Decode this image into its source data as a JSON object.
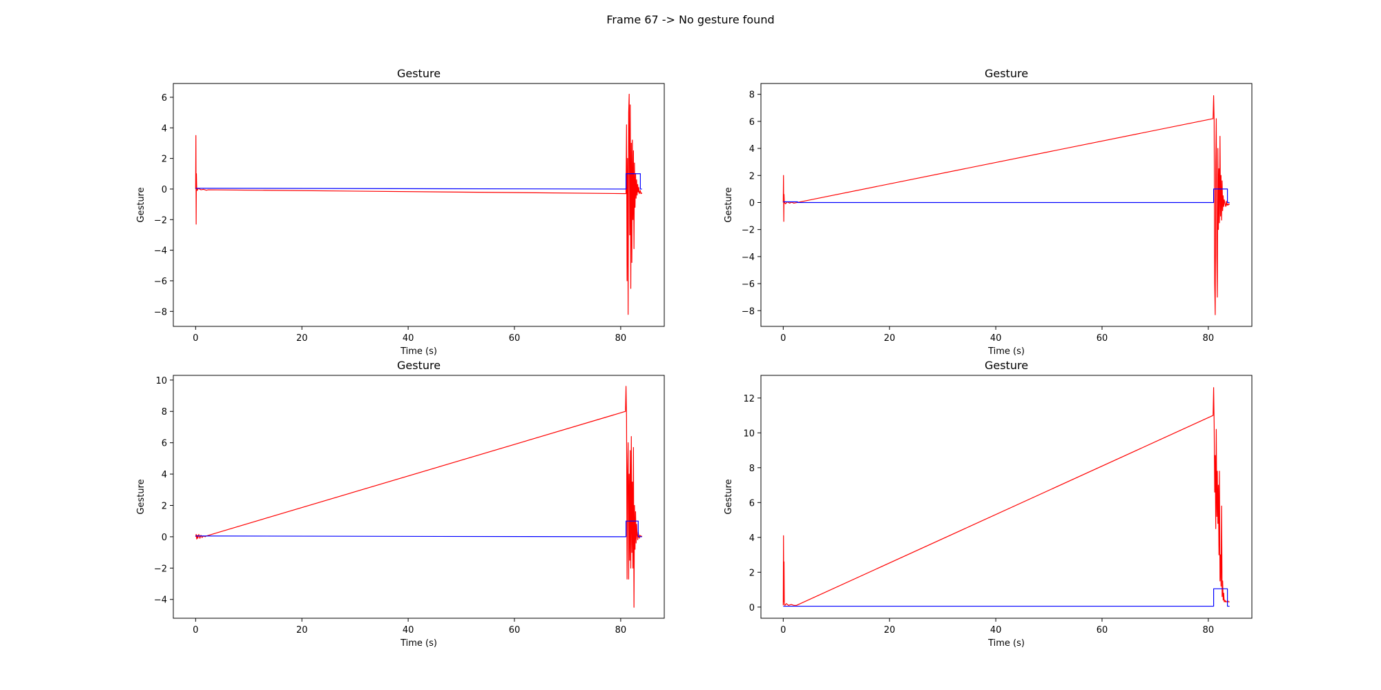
{
  "figure": {
    "suptitle": "Frame 67 -> No gesture found"
  },
  "colors": {
    "signal": "#ff0000",
    "gesture": "#0000ff",
    "axes": "#000000"
  },
  "chart_data": [
    {
      "type": "line",
      "title": "Gesture",
      "xlabel": "Time (s)",
      "ylabel": "Gesture",
      "xlim": [
        -4.2,
        88.2
      ],
      "ylim": [
        -8.98,
        6.9
      ],
      "xticks": [
        0,
        20,
        40,
        60,
        80
      ],
      "yticks": [
        -8,
        -6,
        -4,
        -2,
        0,
        2,
        4,
        6
      ],
      "grid": false,
      "series": [
        {
          "color": "#ff0000",
          "x": [
            0,
            0.05,
            0.1,
            0.15,
            0.2,
            0.3,
            0.5,
            1.0,
            1.5,
            2.0,
            2.4,
            81.0,
            81.1,
            81.2,
            81.3,
            81.4,
            81.5,
            81.6,
            81.7,
            81.8,
            81.9,
            82.0,
            82.1,
            82.2,
            82.3,
            82.4,
            82.5,
            82.6,
            82.7,
            82.8,
            82.9,
            83.0,
            83.1,
            83.2,
            83.3,
            83.4,
            83.5,
            83.6,
            83.7,
            83.8,
            83.9,
            84.0
          ],
          "y": [
            0,
            3.5,
            -2.3,
            1.0,
            0.1,
            -0.1,
            0.05,
            -0.05,
            -0.02,
            -0.08,
            -0.05,
            -0.3,
            4.2,
            -6.0,
            2.0,
            -8.2,
            5.0,
            6.2,
            -3.0,
            5.5,
            -6.5,
            3.0,
            -4.8,
            3.2,
            -2.0,
            2.5,
            -3.9,
            1.7,
            -1.2,
            1.0,
            -0.6,
            0.6,
            -0.4,
            0.3,
            -0.2,
            0.1,
            -0.3,
            -0.2,
            -0.1,
            -0.3,
            -0.25,
            -0.3
          ]
        },
        {
          "color": "#0000ff",
          "x": [
            0,
            81.0,
            81.0,
            81.1,
            83.7,
            83.7,
            84.0
          ],
          "y": [
            0.05,
            0.0,
            1.0,
            1.0,
            1.0,
            0.0,
            0.0
          ]
        }
      ]
    },
    {
      "type": "line",
      "title": "Gesture",
      "xlabel": "Time (s)",
      "ylabel": "Gesture",
      "xlim": [
        -4.2,
        88.2
      ],
      "ylim": [
        -9.16,
        8.8
      ],
      "xticks": [
        0,
        20,
        40,
        60,
        80
      ],
      "yticks": [
        -8,
        -6,
        -4,
        -2,
        0,
        2,
        4,
        6,
        8
      ],
      "grid": false,
      "series": [
        {
          "color": "#ff0000",
          "x": [
            0,
            0.05,
            0.1,
            0.15,
            0.2,
            0.4,
            0.8,
            1.2,
            1.6,
            2.0,
            80.9,
            81.0,
            81.1,
            81.2,
            81.3,
            81.4,
            81.5,
            81.6,
            81.7,
            81.8,
            81.9,
            82.0,
            82.1,
            82.2,
            82.3,
            82.4,
            82.5,
            82.6,
            82.7,
            82.8,
            82.9,
            83.0,
            83.1,
            83.2,
            83.3,
            83.4,
            83.5,
            83.6,
            83.7,
            83.8,
            83.9,
            84.0
          ],
          "y": [
            0,
            2.0,
            -1.4,
            0.6,
            0.05,
            -0.1,
            0.05,
            -0.05,
            0.02,
            -0.05,
            6.2,
            7.9,
            6.0,
            -6.0,
            -8.3,
            3.0,
            6.2,
            -4.0,
            -7.0,
            4.0,
            -2.0,
            2.5,
            -1.5,
            4.9,
            -1.0,
            2.0,
            -1.3,
            1.6,
            -0.6,
            0.5,
            -0.3,
            0.2,
            0.0,
            -0.2,
            -0.3,
            0.1,
            -0.2,
            -0.1,
            -0.2,
            -0.1,
            -0.15,
            -0.1
          ]
        },
        {
          "color": "#0000ff",
          "x": [
            0,
            2.7,
            2.7,
            81.0,
            81.0,
            83.6,
            83.6,
            84.0
          ],
          "y": [
            0.05,
            0.05,
            0.0,
            0.0,
            1.0,
            1.0,
            0.0,
            0.0
          ]
        }
      ]
    },
    {
      "type": "line",
      "title": "Gesture",
      "xlabel": "Time (s)",
      "ylabel": "Gesture",
      "xlim": [
        -4.2,
        88.2
      ],
      "ylim": [
        -5.2,
        10.3
      ],
      "xticks": [
        0,
        20,
        40,
        60,
        80
      ],
      "yticks": [
        -4,
        -2,
        0,
        2,
        4,
        6,
        8,
        10
      ],
      "grid": false,
      "series": [
        {
          "color": "#ff0000",
          "x": [
            0,
            0.1,
            0.2,
            0.3,
            0.4,
            0.6,
            0.8,
            1.0,
            1.2,
            1.5,
            1.8,
            2.0,
            80.9,
            81.0,
            81.1,
            81.2,
            81.3,
            81.4,
            81.5,
            81.6,
            81.7,
            81.8,
            81.9,
            82.0,
            82.1,
            82.2,
            82.3,
            82.4,
            82.5,
            82.6,
            82.7,
            82.8,
            82.9,
            83.0,
            83.1,
            83.2,
            83.3,
            83.4,
            83.5,
            83.6,
            83.7,
            83.8,
            83.9,
            84.0
          ],
          "y": [
            0,
            0.15,
            -0.15,
            0.1,
            -0.1,
            0.15,
            -0.1,
            0.1,
            -0.05,
            0.05,
            0.0,
            0.05,
            8.0,
            9.6,
            7.6,
            -2.7,
            4.2,
            6.0,
            -2.7,
            4.0,
            -1.5,
            5.5,
            -2.0,
            6.4,
            -1.0,
            3.5,
            -2.0,
            5.7,
            -4.5,
            2.0,
            -0.8,
            1.6,
            -0.4,
            0.8,
            0.1,
            -0.2,
            0.3,
            0.0,
            -0.1,
            0.1,
            0.05,
            0.0,
            0.05,
            0.0
          ]
        },
        {
          "color": "#0000ff",
          "x": [
            0,
            81.0,
            81.0,
            83.3,
            83.3,
            84.0
          ],
          "y": [
            0.05,
            0.0,
            1.0,
            1.0,
            0.0,
            0.0
          ]
        }
      ]
    },
    {
      "type": "line",
      "title": "Gesture",
      "xlabel": "Time (s)",
      "ylabel": "Gesture",
      "xlim": [
        -4.2,
        88.2
      ],
      "ylim": [
        -0.64,
        13.3
      ],
      "xticks": [
        0,
        20,
        40,
        60,
        80
      ],
      "yticks": [
        0,
        2,
        4,
        6,
        8,
        10,
        12
      ],
      "grid": false,
      "series": [
        {
          "color": "#ff0000",
          "x": [
            0,
            0.05,
            0.1,
            0.15,
            0.2,
            0.3,
            0.6,
            1.0,
            1.5,
            2.0,
            2.5,
            80.9,
            81.0,
            81.1,
            81.2,
            81.3,
            81.4,
            81.5,
            81.6,
            81.7,
            81.8,
            81.9,
            82.0,
            82.1,
            82.2,
            82.3,
            82.4,
            82.5,
            82.6,
            82.7,
            82.8,
            82.9,
            83.0,
            83.1,
            83.2,
            83.3,
            83.4,
            83.5,
            83.6,
            83.7,
            83.8,
            83.9,
            84.0
          ],
          "y": [
            0.1,
            4.1,
            0.3,
            2.6,
            0.2,
            0.1,
            0.2,
            0.1,
            0.15,
            0.1,
            0.1,
            11.0,
            12.6,
            10.5,
            6.6,
            8.7,
            4.5,
            10.2,
            5.2,
            7.8,
            4.8,
            7.0,
            3.0,
            7.8,
            1.5,
            3.0,
            1.2,
            5.8,
            0.6,
            1.5,
            0.4,
            0.8,
            0.3,
            0.4,
            0.3,
            0.35,
            0.3,
            0.3,
            0.3,
            0.35,
            0.3,
            0.3,
            0.3
          ]
        },
        {
          "color": "#0000ff",
          "x": [
            0,
            81.0,
            81.0,
            83.6,
            83.6,
            84.0
          ],
          "y": [
            0.05,
            0.05,
            1.05,
            1.05,
            0.05,
            0.05
          ]
        }
      ]
    }
  ]
}
